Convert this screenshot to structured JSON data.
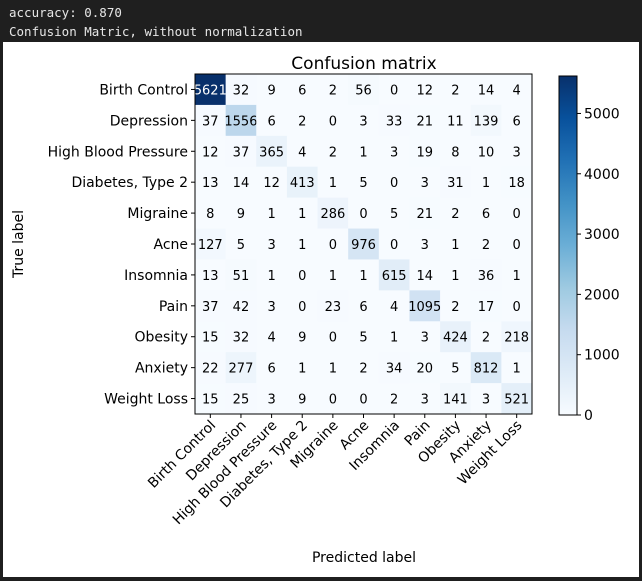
{
  "console": {
    "accuracy_line": "accuracy: 0.870",
    "caption_line": "Confusion Matric, without normalization"
  },
  "chart_data": {
    "type": "heatmap",
    "title": "Confusion matrix",
    "xlabel": "Predicted label",
    "ylabel": "True label",
    "labels": [
      "Birth Control",
      "Depression",
      "High Blood Pressure",
      "Diabetes, Type 2",
      "Migraine",
      "Acne",
      "Insomnia",
      "Pain",
      "Obesity",
      "Anxiety",
      "Weight Loss"
    ],
    "matrix": [
      [
        5621,
        32,
        9,
        6,
        2,
        56,
        0,
        12,
        2,
        14,
        4
      ],
      [
        37,
        1556,
        6,
        2,
        0,
        3,
        33,
        21,
        11,
        139,
        6
      ],
      [
        12,
        37,
        365,
        4,
        2,
        1,
        3,
        19,
        8,
        10,
        3
      ],
      [
        13,
        14,
        12,
        413,
        1,
        5,
        0,
        3,
        31,
        1,
        18
      ],
      [
        8,
        9,
        1,
        1,
        286,
        0,
        5,
        21,
        2,
        6,
        0
      ],
      [
        127,
        5,
        3,
        1,
        0,
        976,
        0,
        3,
        1,
        2,
        0
      ],
      [
        13,
        51,
        1,
        0,
        1,
        1,
        615,
        14,
        1,
        36,
        1
      ],
      [
        37,
        42,
        3,
        0,
        23,
        6,
        4,
        1095,
        2,
        17,
        0
      ],
      [
        15,
        32,
        4,
        9,
        0,
        5,
        1,
        3,
        424,
        2,
        218
      ],
      [
        22,
        277,
        6,
        1,
        1,
        2,
        34,
        20,
        5,
        812,
        1
      ],
      [
        15,
        25,
        3,
        9,
        0,
        0,
        2,
        3,
        141,
        3,
        521
      ]
    ],
    "colorbar": {
      "min": 0,
      "max": 5621,
      "ticks": [
        0,
        1000,
        2000,
        3000,
        4000,
        5000
      ],
      "colormap": "Blues"
    },
    "text_color_threshold": 2810.5
  }
}
